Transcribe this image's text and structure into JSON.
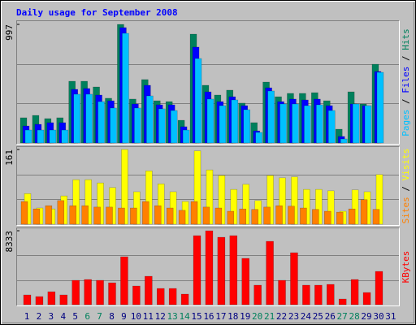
{
  "title": "Daily usage for September 2008",
  "legend_separator": " / ",
  "chart_data": [
    {
      "type": "bar",
      "ylim": [
        0,
        997
      ],
      "yticks": [
        997
      ],
      "series": [
        {
          "name": "Hits",
          "color": "#00805c",
          "values": [
            212,
            232,
            205,
            212,
            519,
            519,
            471,
            376,
            997,
            369,
            533,
            355,
            348,
            191,
            915,
            485,
            403,
            444,
            335,
            171,
            512,
            389,
            417,
            417,
            423,
            355,
            116,
            430,
            328,
            662,
            null
          ]
        },
        {
          "name": "Files",
          "color": "#0000ff",
          "values": [
            143,
            157,
            171,
            171,
            451,
            458,
            403,
            355,
            970,
            328,
            485,
            321,
            321,
            137,
            806,
            430,
            348,
            389,
            314,
            102,
            464,
            348,
            369,
            362,
            369,
            314,
            55,
            328,
            314,
            601,
            null
          ]
        },
        {
          "name": "Pages",
          "color": "#00c0ff",
          "values": [
            109,
            109,
            109,
            109,
            410,
            410,
            348,
            294,
            922,
            294,
            396,
            287,
            273,
            109,
            710,
            369,
            314,
            362,
            280,
            89,
            437,
            328,
            328,
            314,
            321,
            273,
            34,
            328,
            314,
            594,
            null
          ]
        }
      ]
    },
    {
      "type": "bar",
      "ylim": [
        0,
        161
      ],
      "yticks": [
        161
      ],
      "series": [
        {
          "name": "Visits",
          "color": "#ffff00",
          "values": [
            66,
            35,
            33,
            61,
            96,
            96,
            89,
            79,
            161,
            70,
            115,
            87,
            70,
            49,
            158,
            117,
            105,
            75,
            86,
            51,
            105,
            100,
            102,
            75,
            75,
            72,
            28,
            74,
            70,
            107,
            null
          ]
        },
        {
          "name": "Sites",
          "color": "#ff8000",
          "values": [
            49,
            33,
            40,
            51,
            40,
            40,
            37,
            37,
            35,
            35,
            49,
            40,
            35,
            30,
            49,
            37,
            35,
            28,
            33,
            32,
            37,
            40,
            39,
            35,
            32,
            28,
            26,
            33,
            53,
            32,
            null
          ]
        }
      ]
    },
    {
      "type": "bar",
      "ylim": [
        0,
        8333
      ],
      "yticks": [
        8333
      ],
      "categories": [
        "1",
        "2",
        "3",
        "4",
        "5",
        "6",
        "7",
        "8",
        "9",
        "10",
        "11",
        "12",
        "13",
        "14",
        "15",
        "16",
        "17",
        "18",
        "19",
        "20",
        "21",
        "22",
        "23",
        "24",
        "25",
        "26",
        "27",
        "28",
        "29",
        "30",
        "31"
      ],
      "category_colors": [
        "#000080",
        "#000080",
        "#000080",
        "#000080",
        "#000080",
        "#00805c",
        "#00805c",
        "#000080",
        "#000080",
        "#000080",
        "#000080",
        "#000080",
        "#00805c",
        "#00805c",
        "#000080",
        "#000080",
        "#000080",
        "#000080",
        "#000080",
        "#00805c",
        "#00805c",
        "#000080",
        "#000080",
        "#000080",
        "#000080",
        "#000080",
        "#00805c",
        "#00805c",
        "#000080",
        "#000080",
        "#000080"
      ],
      "series": [
        {
          "name": "KBytes",
          "color": "#ff0000",
          "values": [
            1099,
            916,
            1465,
            1099,
            2747,
            2839,
            2747,
            2472,
            5403,
            2106,
            3205,
            1831,
            1831,
            1190,
            7783,
            8333,
            7600,
            7783,
            5220,
            2198,
            7143,
            2747,
            5861,
            2198,
            2198,
            2289,
            641,
            2839,
            1374,
            3754,
            null
          ]
        }
      ]
    }
  ]
}
